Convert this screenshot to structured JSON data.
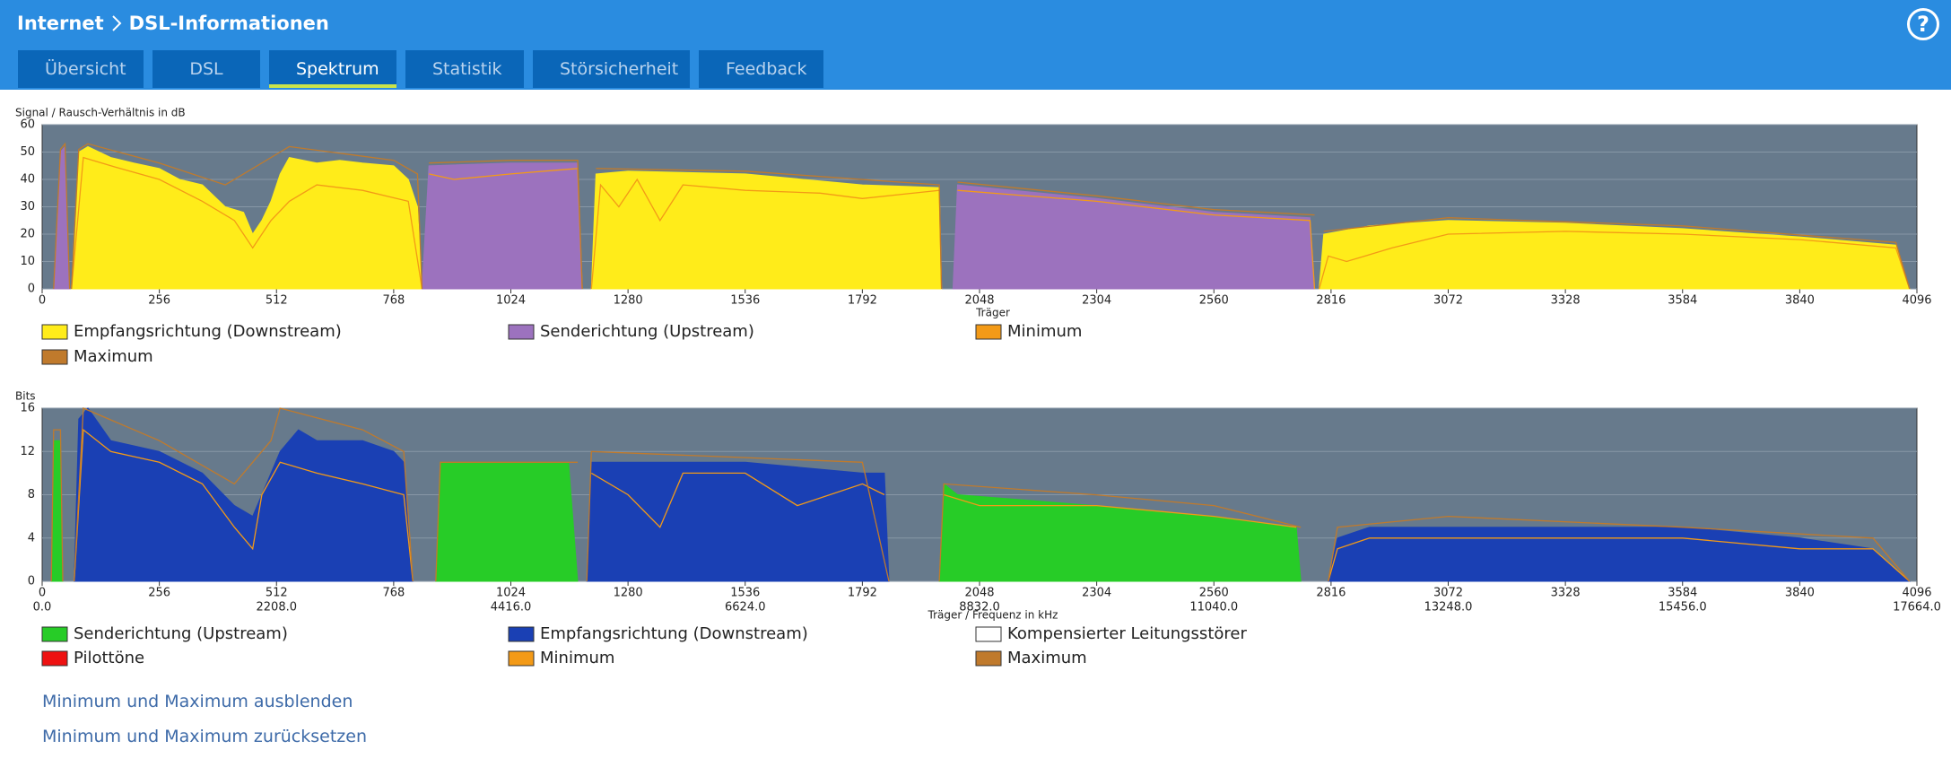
{
  "header": {
    "breadcrumb": [
      "Internet",
      "DSL-Informationen"
    ],
    "help": "?",
    "tabs": [
      "Übersicht",
      "DSL",
      "Spektrum",
      "Statistik",
      "Störsicherheit",
      "Feedback"
    ]
  },
  "chart_data": [
    {
      "type": "area",
      "ylabel": "Signal / Rausch-Verhältnis in dB",
      "xlabel": "Träger",
      "xlim": [
        0,
        4096
      ],
      "ylim": [
        0,
        60
      ],
      "xticks": [
        0,
        256,
        512,
        768,
        1024,
        1280,
        1536,
        1792,
        2048,
        2304,
        2560,
        2816,
        3072,
        3328,
        3584,
        3840,
        4096
      ],
      "yticks": [
        0,
        10,
        20,
        30,
        40,
        50,
        60
      ],
      "grid": true,
      "background": "#677a8c",
      "series": [
        {
          "name": "Empfangsrichtung (Downstream)",
          "color": "#ffec1a",
          "fill": true,
          "x": [
            64,
            80,
            100,
            150,
            200,
            256,
            300,
            350,
            400,
            440,
            460,
            480,
            500,
            520,
            540,
            600,
            650,
            700,
            768,
            800,
            820,
            830,
            null,
            1200,
            1210,
            1280,
            1536,
            1792,
            1960,
            1965,
            null,
            2790,
            2800,
            2900,
            3072,
            3328,
            3584,
            3840,
            4050,
            4080
          ],
          "values": [
            0,
            50,
            52,
            48,
            46,
            44,
            40,
            38,
            30,
            28,
            20,
            25,
            32,
            42,
            48,
            46,
            47,
            46,
            45,
            40,
            30,
            0,
            null,
            0,
            42,
            43,
            42,
            38,
            37,
            0,
            null,
            0,
            20,
            23,
            25,
            24,
            22,
            19,
            16,
            0
          ]
        },
        {
          "name": "Senderichtung (Upstream)",
          "color": "#9c72be",
          "fill": true,
          "x": [
            25,
            40,
            50,
            60,
            null,
            830,
            845,
            1024,
            1170,
            1180,
            null,
            1990,
            2000,
            2304,
            2560,
            2770,
            2780
          ],
          "values": [
            0,
            50,
            52,
            0,
            null,
            0,
            45,
            46,
            46,
            0,
            null,
            0,
            38,
            33,
            28,
            26,
            0
          ]
        },
        {
          "name": "Minimum",
          "color": "#f39a17",
          "fill": false,
          "x": [
            64,
            90,
            150,
            256,
            350,
            420,
            460,
            500,
            540,
            600,
            700,
            800,
            830,
            null,
            845,
            900,
            1024,
            1170,
            1180,
            null,
            1200,
            1220,
            1260,
            1300,
            1350,
            1400,
            1536,
            1700,
            1792,
            1960,
            1965,
            null,
            2000,
            2304,
            2560,
            2770,
            2780,
            null,
            2790,
            2810,
            2850,
            2950,
            3072,
            3328,
            3584,
            3840,
            4050,
            4080
          ],
          "values": [
            0,
            48,
            45,
            40,
            32,
            25,
            15,
            25,
            32,
            38,
            36,
            32,
            0,
            null,
            42,
            40,
            42,
            44,
            0,
            null,
            0,
            38,
            30,
            40,
            25,
            38,
            36,
            35,
            33,
            36,
            0,
            null,
            36,
            32,
            27,
            25,
            0,
            null,
            0,
            12,
            10,
            15,
            20,
            21,
            20,
            18,
            15,
            0
          ]
        },
        {
          "name": "Maximum",
          "color": "#c07a2c",
          "fill": false,
          "x": [
            25,
            40,
            50,
            60,
            null,
            64,
            80,
            100,
            256,
            400,
            520,
            540,
            768,
            820,
            830,
            null,
            845,
            1024,
            1170,
            1180,
            null,
            1210,
            1536,
            1960,
            1965,
            null,
            2000,
            2304,
            2560,
            2780,
            null,
            2800,
            3072,
            3584,
            4050,
            4080
          ],
          "values": [
            0,
            51,
            53,
            0,
            null,
            0,
            51,
            53,
            46,
            38,
            50,
            52,
            47,
            42,
            0,
            null,
            46,
            47,
            47,
            0,
            null,
            44,
            43,
            38,
            0,
            null,
            39,
            34,
            29,
            27,
            null,
            21,
            26,
            23,
            17,
            0
          ]
        }
      ]
    },
    {
      "type": "area",
      "ylabel": "Bits",
      "xlabel": "Träger / Frequenz in kHz",
      "xlim": [
        0,
        4096
      ],
      "ylim": [
        0,
        16
      ],
      "x2lim": [
        0,
        17664
      ],
      "xticks": [
        0,
        256,
        512,
        768,
        1024,
        1280,
        1536,
        1792,
        2048,
        2304,
        2560,
        2816,
        3072,
        3328,
        3584,
        3840,
        4096
      ],
      "x2ticks": [
        {
          "value": 0,
          "label": "0.0"
        },
        {
          "value": 2208,
          "label": "2208.0"
        },
        {
          "value": 4416,
          "label": "4416.0"
        },
        {
          "value": 6624,
          "label": "6624.0"
        },
        {
          "value": 8832,
          "label": "8832.0"
        },
        {
          "value": 11040,
          "label": "11040.0"
        },
        {
          "value": 13248,
          "label": "13248.0"
        },
        {
          "value": 15456,
          "label": "15456.0"
        },
        {
          "value": 17664,
          "label": "17664.0"
        }
      ],
      "yticks": [
        0,
        4,
        8,
        12,
        16
      ],
      "grid": true,
      "background": "#677a8c",
      "series": [
        {
          "name": "Senderichtung (Upstream)",
          "color": "#27cc27",
          "fill": true,
          "x": [
            20,
            25,
            40,
            45,
            null,
            860,
            870,
            1000,
            1150,
            1170,
            null,
            1960,
            1970,
            2000,
            2300,
            2560,
            2740,
            2750
          ],
          "values": [
            0,
            13,
            13,
            0,
            null,
            0,
            11,
            11,
            11,
            0,
            null,
            0,
            9,
            8,
            7,
            6,
            5,
            0
          ]
        },
        {
          "name": "Empfangsrichtung (Downstream)",
          "color": "#1a40b4",
          "fill": true,
          "x": [
            70,
            80,
            100,
            150,
            256,
            350,
            420,
            460,
            500,
            520,
            560,
            600,
            700,
            768,
            790,
            810,
            null,
            1190,
            1200,
            1280,
            1536,
            1792,
            1840,
            1850,
            null,
            2810,
            2830,
            2900,
            3072,
            3328,
            3584,
            3840,
            4000,
            4080
          ],
          "values": [
            0,
            15,
            16,
            13,
            12,
            10,
            7,
            6,
            10,
            12,
            14,
            13,
            13,
            12,
            11,
            0,
            null,
            0,
            11,
            11,
            11,
            10,
            10,
            0,
            null,
            0,
            4,
            5,
            5,
            5,
            5,
            4,
            3,
            0
          ]
        },
        {
          "name": "Kompensierter Leitungsstörer",
          "color": "#ffffff",
          "fill": true,
          "x": [],
          "values": []
        },
        {
          "name": "Pilottöne",
          "color": "#ee1111",
          "fill": true,
          "x": [],
          "values": []
        },
        {
          "name": "Minimum",
          "color": "#f39a17",
          "fill": false,
          "x": [
            70,
            90,
            150,
            256,
            350,
            420,
            460,
            480,
            520,
            600,
            700,
            790,
            810,
            null,
            1200,
            1280,
            1350,
            1400,
            1536,
            1650,
            1792,
            1840,
            null,
            1970,
            2048,
            2304,
            2560,
            2740,
            null,
            2810,
            2830,
            2900,
            3072,
            3328,
            3584,
            3840,
            4000,
            4080
          ],
          "values": [
            0,
            14,
            12,
            11,
            9,
            5,
            3,
            8,
            11,
            10,
            9,
            8,
            0,
            null,
            10,
            8,
            5,
            10,
            10,
            7,
            9,
            8,
            null,
            8,
            7,
            7,
            6,
            5,
            null,
            0,
            3,
            4,
            4,
            4,
            4,
            3,
            3,
            0
          ]
        },
        {
          "name": "Maximum",
          "color": "#c07a2c",
          "fill": false,
          "x": [
            20,
            25,
            40,
            45,
            null,
            70,
            90,
            256,
            420,
            500,
            520,
            700,
            790,
            810,
            null,
            860,
            870,
            1170,
            null,
            1190,
            1200,
            1792,
            1850,
            null,
            1960,
            1970,
            2300,
            2560,
            2750,
            null,
            2810,
            2830,
            3072,
            3584,
            4000,
            4080
          ],
          "values": [
            0,
            14,
            14,
            0,
            null,
            0,
            16,
            13,
            9,
            13,
            16,
            14,
            12,
            0,
            null,
            0,
            11,
            11,
            null,
            0,
            12,
            11,
            0,
            null,
            0,
            9,
            8,
            7,
            5,
            null,
            0,
            5,
            6,
            5,
            4,
            0
          ]
        }
      ]
    }
  ],
  "links": [
    "Minimum und Maximum ausblenden",
    "Minimum und Maximum zurücksetzen"
  ]
}
